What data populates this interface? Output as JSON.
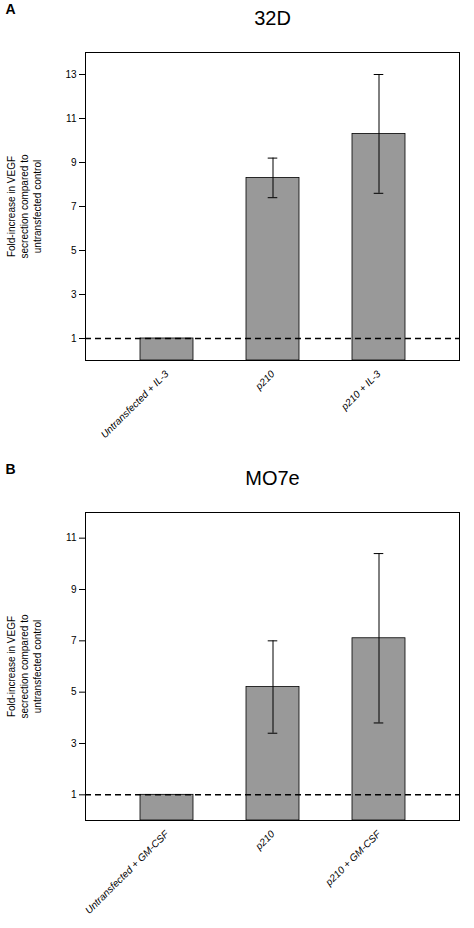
{
  "chart_data": [
    {
      "type": "bar",
      "title": "32D",
      "panel_label": "A",
      "categories": [
        "Untransfected + IL-3",
        "p210",
        "p210 + IL-3"
      ],
      "values": [
        1.0,
        8.3,
        10.3
      ],
      "errors": [
        0.0,
        0.9,
        2.7
      ],
      "reference_y": 1.0,
      "ylabel": "Fold-increase in VEGF\nsecrection compared to\nuntransfected control",
      "color": "#999999",
      "ylim": [
        0,
        14
      ],
      "yticks": [
        1,
        3,
        5,
        7,
        9,
        11,
        13
      ],
      "grid": false
    },
    {
      "type": "bar",
      "title": "MO7e",
      "panel_label": "B",
      "categories": [
        "Untransfected + GM-CSF",
        "p210",
        "p210 + GM-CSF"
      ],
      "values": [
        1.0,
        5.2,
        7.1
      ],
      "errors": [
        0.0,
        1.8,
        3.3
      ],
      "reference_y": 1.0,
      "ylabel": "Fold-increase in VEGF\nsecrection compared to\nuntransfected control",
      "color": "#999999",
      "ylim": [
        0,
        12
      ],
      "yticks": [
        1,
        3,
        5,
        7,
        9,
        11
      ],
      "grid": false
    }
  ]
}
